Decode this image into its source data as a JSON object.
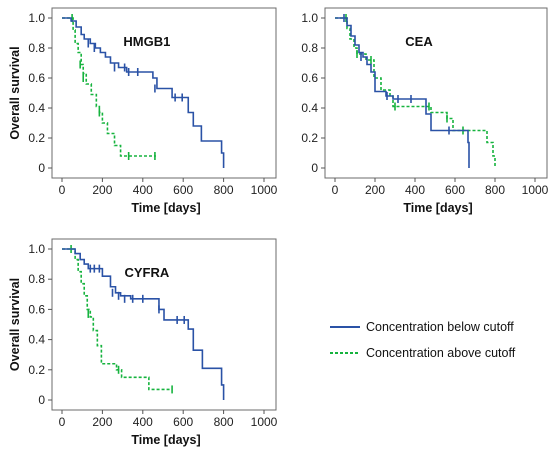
{
  "chart_data": [
    {
      "type": "line",
      "title": "HMGB1",
      "xlabel": "Time [days]",
      "ylabel": "Overall survival",
      "xlim": [
        0,
        1000
      ],
      "ylim": [
        0,
        1
      ],
      "xticks": [
        "0",
        "200",
        "400",
        "600",
        "800",
        "1000"
      ],
      "yticks": [
        "0",
        "0.2",
        "0.4",
        "0.6",
        "0.8",
        "1.0"
      ],
      "series": [
        {
          "name": "Concentration below cutoff",
          "step_x": [
            0,
            45,
            70,
            95,
            110,
            140,
            165,
            190,
            215,
            240,
            280,
            320,
            450,
            470,
            545,
            625,
            650,
            690,
            790,
            800
          ],
          "step_y": [
            1.0,
            0.98,
            0.94,
            0.89,
            0.86,
            0.83,
            0.8,
            0.77,
            0.74,
            0.7,
            0.67,
            0.64,
            0.6,
            0.53,
            0.47,
            0.37,
            0.28,
            0.18,
            0.1,
            0.0
          ],
          "censor_x": [
            130,
            160,
            260,
            310,
            330,
            375,
            460,
            560,
            595
          ],
          "censor_y": [
            0.83,
            0.8,
            0.67,
            0.67,
            0.64,
            0.64,
            0.53,
            0.47,
            0.47
          ]
        },
        {
          "name": "Concentration above cutoff",
          "step_x": [
            0,
            55,
            65,
            80,
            95,
            105,
            120,
            145,
            170,
            185,
            200,
            225,
            260,
            290
          ],
          "step_y": [
            1.0,
            0.92,
            0.83,
            0.77,
            0.69,
            0.63,
            0.56,
            0.49,
            0.41,
            0.37,
            0.3,
            0.23,
            0.15,
            0.08
          ],
          "end_x": 465,
          "censor_x": [
            50,
            90,
            105,
            185,
            330,
            460
          ],
          "censor_y": [
            1.0,
            0.69,
            0.6,
            0.37,
            0.08,
            0.08
          ]
        }
      ]
    },
    {
      "type": "line",
      "title": "CEA",
      "xlabel": "Time [days]",
      "ylabel": "",
      "xlim": [
        0,
        1000
      ],
      "ylim": [
        0,
        1
      ],
      "xticks": [
        "0",
        "200",
        "400",
        "600",
        "800",
        "1000"
      ],
      "yticks": [
        "0",
        "0.2",
        "0.4",
        "0.6",
        "0.8",
        "1.0"
      ],
      "series": [
        {
          "name": "Concentration below cutoff",
          "step_x": [
            0,
            60,
            80,
            100,
            120,
            140,
            160,
            180,
            200,
            255,
            290,
            455,
            480,
            665,
            670
          ],
          "step_y": [
            1.0,
            0.95,
            0.88,
            0.82,
            0.77,
            0.74,
            0.69,
            0.64,
            0.51,
            0.48,
            0.46,
            0.36,
            0.25,
            0.17,
            0.0
          ],
          "censor_x": [
            45,
            130,
            260,
            315,
            380,
            570
          ],
          "censor_y": [
            1.0,
            0.74,
            0.48,
            0.46,
            0.46,
            0.25
          ]
        },
        {
          "name": "Concentration above cutoff",
          "step_x": [
            0,
            60,
            75,
            95,
            110,
            155,
            195,
            230,
            275,
            290,
            480,
            560,
            590,
            640,
            760,
            790,
            800
          ],
          "step_y": [
            1.0,
            0.93,
            0.86,
            0.8,
            0.76,
            0.72,
            0.6,
            0.52,
            0.48,
            0.41,
            0.37,
            0.33,
            0.25,
            0.25,
            0.17,
            0.08,
            0.0
          ],
          "censor_x": [
            55,
            110,
            180,
            300,
            470,
            560,
            640
          ],
          "censor_y": [
            1.0,
            0.76,
            0.72,
            0.41,
            0.41,
            0.33,
            0.25
          ]
        }
      ]
    },
    {
      "type": "line",
      "title": "CYFRA",
      "xlabel": "Time [days]",
      "ylabel": "Overall survival",
      "xlim": [
        0,
        1000
      ],
      "ylim": [
        0,
        1
      ],
      "xticks": [
        "0",
        "200",
        "400",
        "600",
        "800",
        "1000"
      ],
      "yticks": [
        "0",
        "0.2",
        "0.4",
        "0.6",
        "0.8",
        "1.0"
      ],
      "series": [
        {
          "name": "Concentration below cutoff",
          "step_x": [
            0,
            65,
            90,
            110,
            130,
            200,
            240,
            265,
            290,
            340,
            460,
            480,
            505,
            625,
            650,
            695,
            790,
            800
          ],
          "step_y": [
            1.0,
            0.97,
            0.93,
            0.9,
            0.87,
            0.82,
            0.75,
            0.71,
            0.69,
            0.67,
            0.67,
            0.6,
            0.53,
            0.47,
            0.33,
            0.21,
            0.1,
            0.0
          ],
          "censor_x": [
            140,
            160,
            185,
            250,
            280,
            310,
            350,
            400,
            480,
            570,
            605
          ],
          "censor_y": [
            0.87,
            0.87,
            0.87,
            0.71,
            0.69,
            0.67,
            0.67,
            0.67,
            0.6,
            0.53,
            0.53
          ]
        },
        {
          "name": "Concentration above cutoff",
          "step_x": [
            0,
            65,
            80,
            95,
            110,
            125,
            140,
            155,
            175,
            195,
            270,
            295,
            430
          ],
          "step_y": [
            1.0,
            0.93,
            0.85,
            0.77,
            0.69,
            0.6,
            0.55,
            0.46,
            0.36,
            0.24,
            0.2,
            0.15,
            0.07
          ],
          "end_x": 545,
          "censor_x": [
            45,
            130,
            280,
            545
          ],
          "censor_y": [
            1.0,
            0.57,
            0.2,
            0.07
          ]
        }
      ]
    }
  ],
  "legend": {
    "items": [
      {
        "label": "Concentration below cutoff",
        "color": "#2a52a6",
        "style": "solid"
      },
      {
        "label": "Concentration above cutoff",
        "color": "#16b33e",
        "style": "dashed"
      }
    ]
  },
  "colors": {
    "below": "#2a52a6",
    "above": "#16b33e"
  }
}
